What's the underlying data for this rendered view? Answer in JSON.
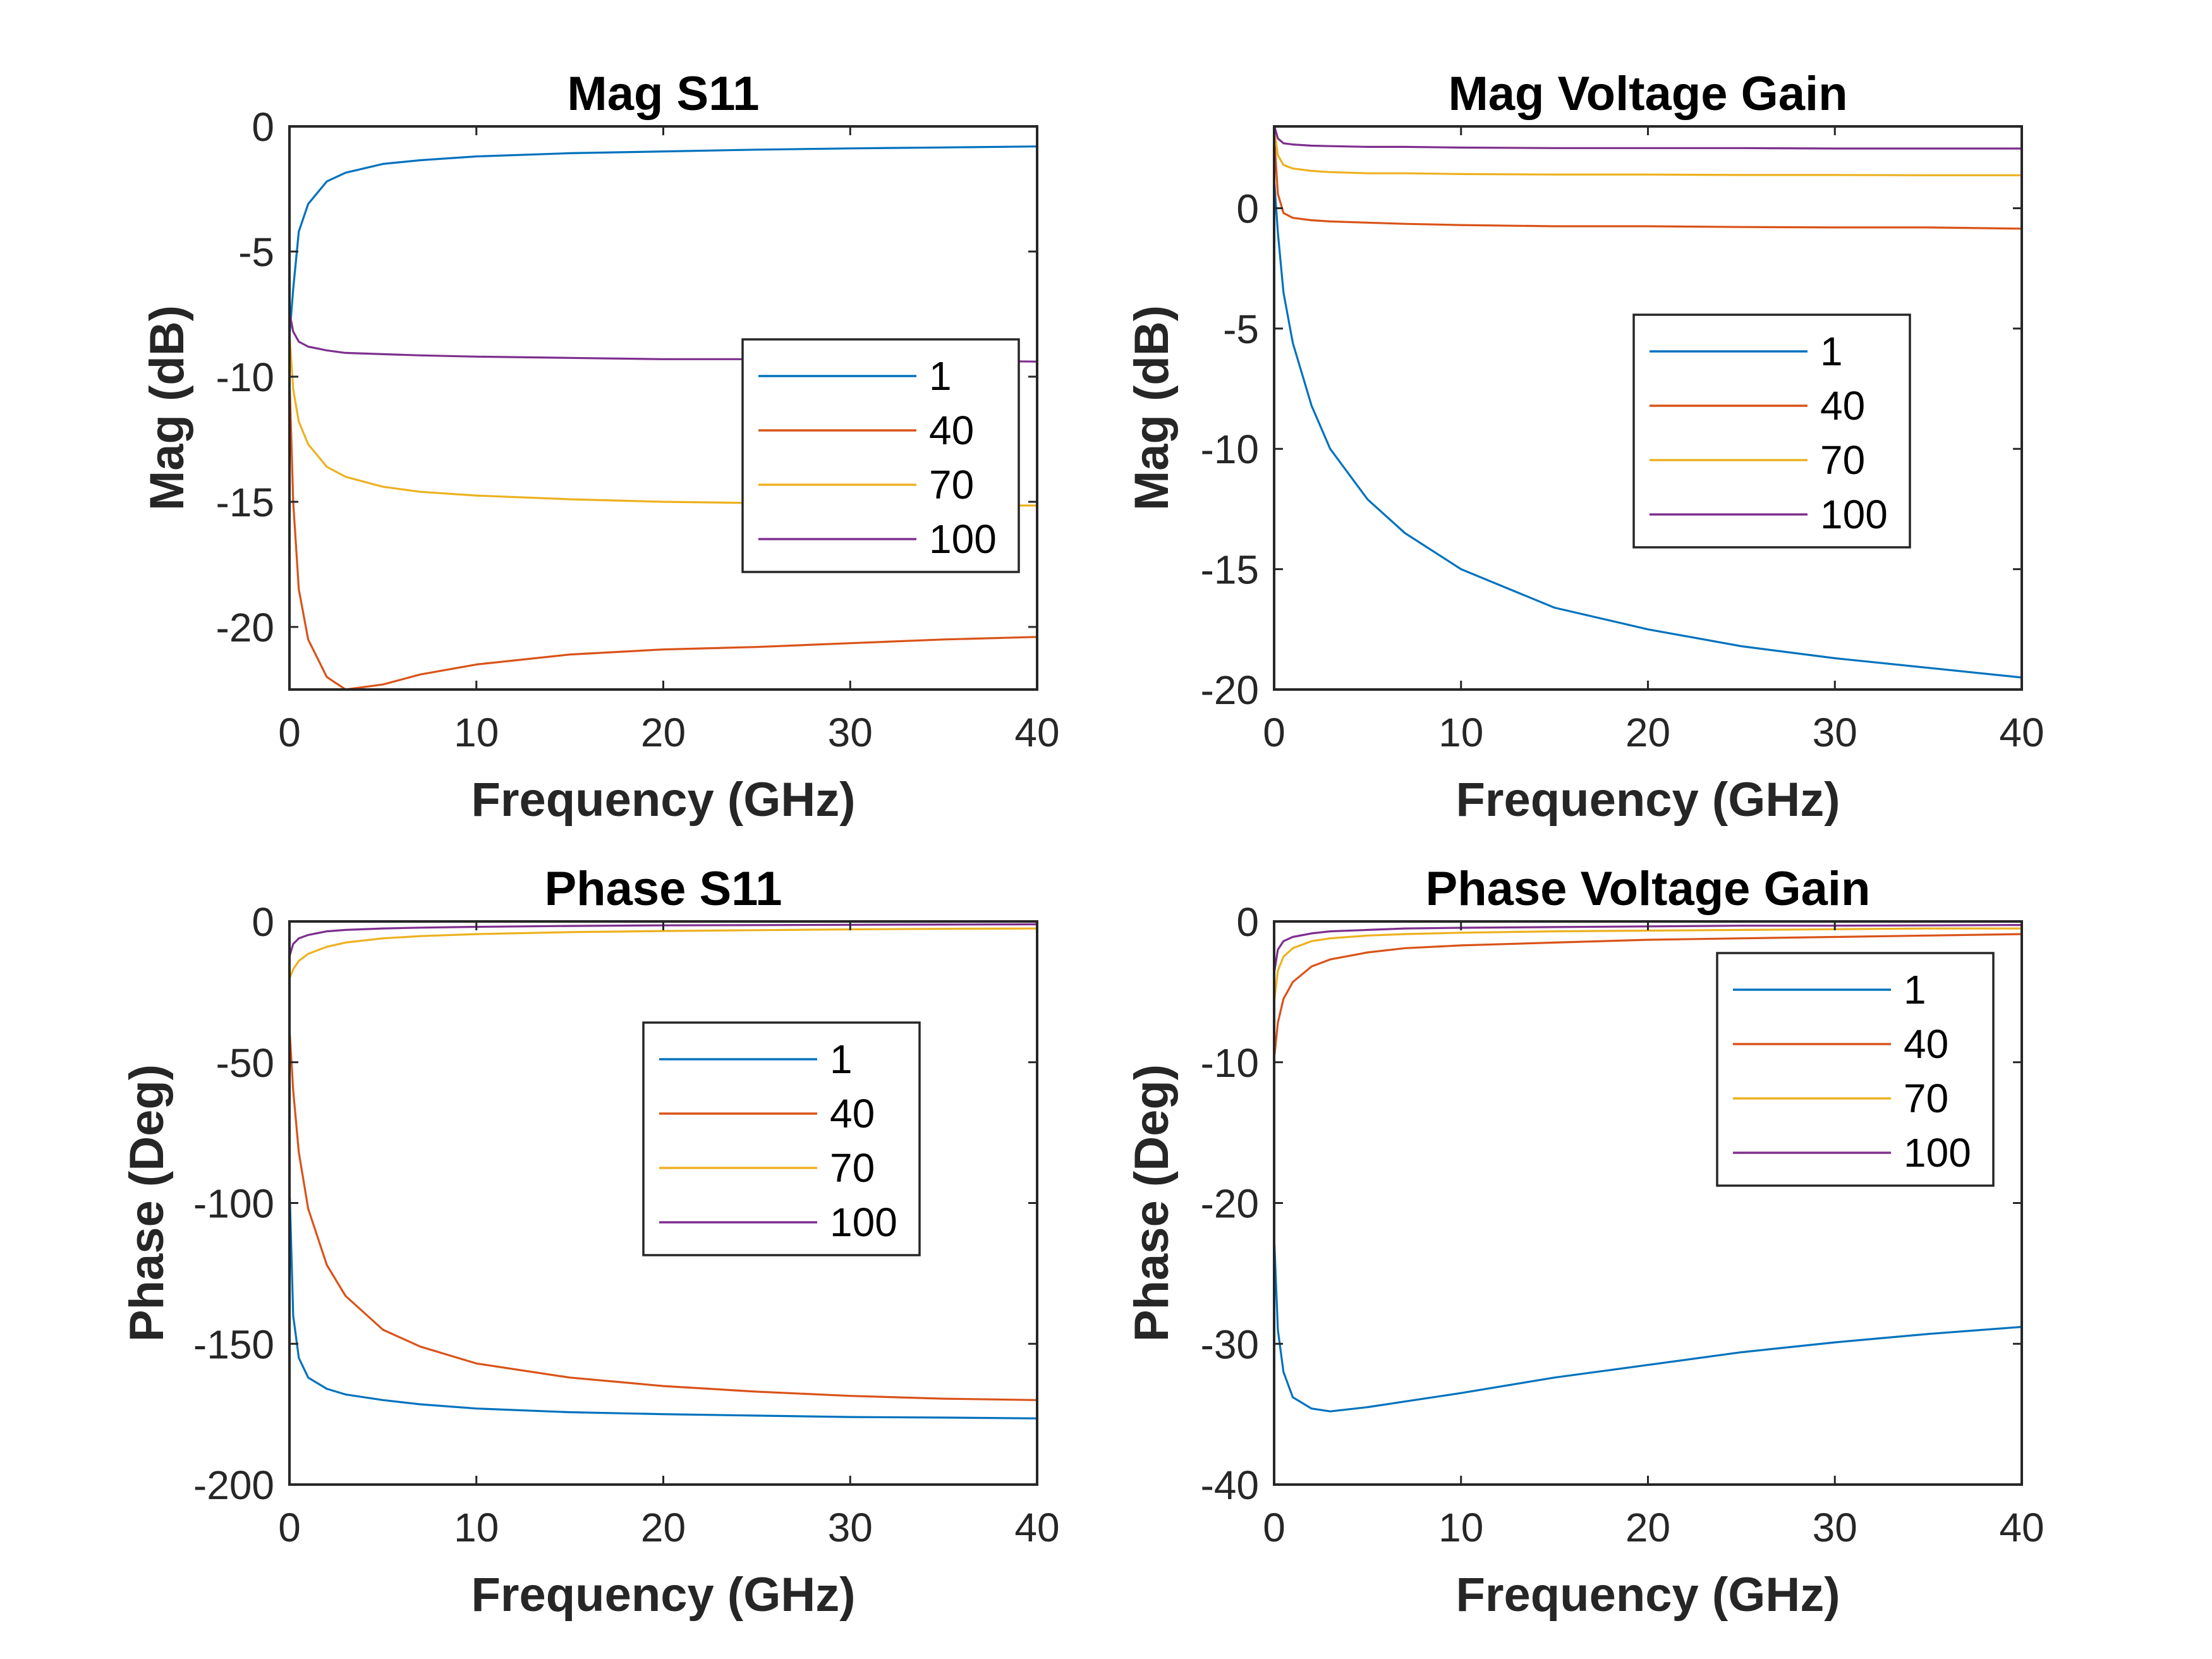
{
  "chart_data": [
    {
      "id": "mag-s11",
      "type": "line",
      "title": "Mag S11",
      "xlabel": "Frequency (GHz)",
      "ylabel": "Mag (dB)",
      "xlim": [
        0,
        40
      ],
      "ylim": [
        -22.5,
        0
      ],
      "xticks": [
        0,
        10,
        20,
        30,
        40
      ],
      "yticks": [
        0,
        -5,
        -10,
        -15,
        -20
      ],
      "legend_position": "center-right",
      "x": [
        0.02,
        0.2,
        0.5,
        1,
        2,
        3,
        5,
        7,
        10,
        15,
        20,
        25,
        30,
        35,
        40
      ],
      "series": [
        {
          "name": "1",
          "color": "#0072BD",
          "values": [
            -8.2,
            -6.5,
            -4.2,
            -3.1,
            -2.2,
            -1.85,
            -1.5,
            -1.35,
            -1.2,
            -1.07,
            -1.0,
            -0.93,
            -0.88,
            -0.84,
            -0.8
          ]
        },
        {
          "name": "40",
          "color": "#D95319",
          "values": [
            -10.5,
            -15.0,
            -18.5,
            -20.5,
            -22.0,
            -22.5,
            -22.3,
            -21.9,
            -21.5,
            -21.1,
            -20.9,
            -20.8,
            -20.65,
            -20.5,
            -20.4
          ]
        },
        {
          "name": "70",
          "color": "#EDB120",
          "values": [
            -8.5,
            -10.5,
            -11.8,
            -12.7,
            -13.6,
            -14.0,
            -14.4,
            -14.6,
            -14.75,
            -14.9,
            -15.0,
            -15.05,
            -15.1,
            -15.15,
            -15.15
          ]
        },
        {
          "name": "100",
          "color": "#7E2F8E",
          "values": [
            -7.5,
            -8.2,
            -8.6,
            -8.8,
            -8.95,
            -9.05,
            -9.1,
            -9.15,
            -9.2,
            -9.25,
            -9.3,
            -9.3,
            -9.35,
            -9.35,
            -9.4
          ]
        }
      ]
    },
    {
      "id": "mag-voltage-gain",
      "type": "line",
      "title": "Mag Voltage Gain",
      "xlabel": "Frequency (GHz)",
      "ylabel": "Mag (dB)",
      "xlim": [
        0,
        40
      ],
      "ylim": [
        -20,
        3.4
      ],
      "xticks": [
        0,
        10,
        20,
        30,
        40
      ],
      "yticks": [
        0,
        -5,
        -10,
        -15,
        -20
      ],
      "legend_position": "center",
      "x": [
        0.02,
        0.2,
        0.5,
        1,
        2,
        3,
        5,
        7,
        10,
        15,
        20,
        25,
        30,
        35,
        40
      ],
      "series": [
        {
          "name": "1",
          "color": "#0072BD",
          "values": [
            1.0,
            -1.0,
            -3.5,
            -5.6,
            -8.2,
            -10.0,
            -12.1,
            -13.5,
            -15.0,
            -16.6,
            -17.5,
            -18.2,
            -18.7,
            -19.1,
            -19.5
          ]
        },
        {
          "name": "40",
          "color": "#D95319",
          "values": [
            2.8,
            0.6,
            -0.2,
            -0.4,
            -0.5,
            -0.55,
            -0.6,
            -0.65,
            -0.7,
            -0.75,
            -0.75,
            -0.78,
            -0.8,
            -0.8,
            -0.85
          ]
        },
        {
          "name": "70",
          "color": "#EDB120",
          "values": [
            3.2,
            2.2,
            1.8,
            1.65,
            1.55,
            1.5,
            1.45,
            1.45,
            1.42,
            1.4,
            1.4,
            1.38,
            1.38,
            1.37,
            1.37
          ]
        },
        {
          "name": "100",
          "color": "#7E2F8E",
          "values": [
            3.4,
            2.9,
            2.7,
            2.65,
            2.6,
            2.58,
            2.55,
            2.55,
            2.52,
            2.5,
            2.5,
            2.5,
            2.48,
            2.48,
            2.48
          ]
        }
      ]
    },
    {
      "id": "phase-s11",
      "type": "line",
      "title": "Phase S11",
      "xlabel": "Frequency (GHz)",
      "ylabel": "Phase (Deg)",
      "xlim": [
        0,
        40
      ],
      "ylim": [
        -200,
        0
      ],
      "xticks": [
        0,
        10,
        20,
        30,
        40
      ],
      "yticks": [
        0,
        -50,
        -100,
        -150,
        -200
      ],
      "legend_position": "center",
      "x": [
        0.02,
        0.2,
        0.5,
        1,
        2,
        3,
        5,
        7,
        10,
        15,
        20,
        25,
        30,
        35,
        40
      ],
      "series": [
        {
          "name": "1",
          "color": "#0072BD",
          "values": [
            -98,
            -140,
            -155,
            -162,
            -166,
            -168,
            -170,
            -171.5,
            -173,
            -174.3,
            -175,
            -175.5,
            -176,
            -176.2,
            -176.5
          ]
        },
        {
          "name": "40",
          "color": "#D95319",
          "values": [
            -40,
            -60,
            -82,
            -102,
            -122,
            -133,
            -145,
            -151,
            -157,
            -162,
            -165,
            -167,
            -168.5,
            -169.5,
            -170
          ]
        },
        {
          "name": "70",
          "color": "#EDB120",
          "values": [
            -20,
            -17,
            -14,
            -11.5,
            -9,
            -7.5,
            -6,
            -5.2,
            -4.5,
            -3.8,
            -3.4,
            -3.1,
            -2.8,
            -2.6,
            -2.5
          ]
        },
        {
          "name": "100",
          "color": "#7E2F8E",
          "values": [
            -12,
            -8,
            -6,
            -4.8,
            -3.5,
            -3.0,
            -2.5,
            -2.2,
            -1.9,
            -1.6,
            -1.4,
            -1.3,
            -1.2,
            -1.1,
            -1.0
          ]
        }
      ]
    },
    {
      "id": "phase-voltage-gain",
      "type": "line",
      "title": "Phase Voltage Gain",
      "xlabel": "Frequency (GHz)",
      "ylabel": "Phase (Deg)",
      "xlim": [
        0,
        40
      ],
      "ylim": [
        -40,
        0
      ],
      "xticks": [
        0,
        10,
        20,
        30,
        40
      ],
      "yticks": [
        0,
        -10,
        -20,
        -30,
        -40
      ],
      "legend_position": "top-right",
      "x": [
        0.02,
        0.2,
        0.5,
        1,
        2,
        3,
        5,
        7,
        10,
        15,
        20,
        25,
        30,
        35,
        40
      ],
      "series": [
        {
          "name": "1",
          "color": "#0072BD",
          "values": [
            -23,
            -29,
            -32,
            -33.8,
            -34.6,
            -34.8,
            -34.5,
            -34.1,
            -33.5,
            -32.4,
            -31.5,
            -30.6,
            -29.9,
            -29.3,
            -28.8
          ]
        },
        {
          "name": "40",
          "color": "#D95319",
          "values": [
            -9.5,
            -7.2,
            -5.5,
            -4.3,
            -3.2,
            -2.7,
            -2.2,
            -1.9,
            -1.7,
            -1.5,
            -1.3,
            -1.2,
            -1.1,
            -1.0,
            -0.9
          ]
        },
        {
          "name": "70",
          "color": "#EDB120",
          "values": [
            -5.5,
            -3.5,
            -2.5,
            -1.9,
            -1.4,
            -1.2,
            -1.0,
            -0.9,
            -0.8,
            -0.7,
            -0.65,
            -0.6,
            -0.55,
            -0.5,
            -0.5
          ]
        },
        {
          "name": "100",
          "color": "#7E2F8E",
          "values": [
            -3.5,
            -2.0,
            -1.4,
            -1.1,
            -0.85,
            -0.7,
            -0.6,
            -0.5,
            -0.45,
            -0.4,
            -0.35,
            -0.3,
            -0.3,
            -0.28,
            -0.25
          ]
        }
      ]
    }
  ]
}
